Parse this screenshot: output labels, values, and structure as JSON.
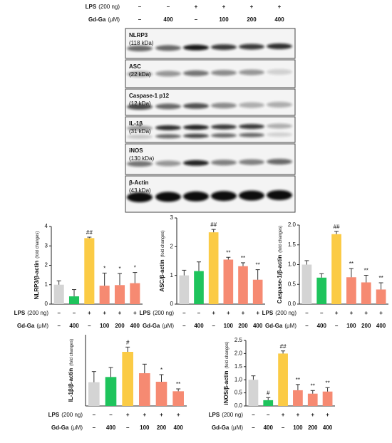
{
  "blot": {
    "conditions": [
      {
        "name": "LPS",
        "unit": "(200 ng)",
        "values": [
          "–",
          "–",
          "+",
          "+",
          "+",
          "+"
        ]
      },
      {
        "name": "Gd-Ga",
        "unit": "(μM)",
        "values": [
          "–",
          "400",
          "–",
          "100",
          "200",
          "400"
        ]
      }
    ],
    "panels": [
      {
        "name": "NLRP3",
        "size": "(118 kDa)"
      },
      {
        "name": "ASC",
        "size": "(22 kDa)"
      },
      {
        "name": "Caspase-1 p12",
        "size": "(12 kDa)"
      },
      {
        "name": "IL-1β",
        "size": "(31 kDa)"
      },
      {
        "name": "iNOS",
        "size": "(130 kDa)"
      },
      {
        "name": "β-Actin",
        "size": "(43 kDa)"
      }
    ]
  },
  "chart_data": [
    {
      "type": "bar",
      "ylabel": "NLRP3/β-actin",
      "ylabel_unit": "(fold changes)",
      "categories": [
        null,
        null,
        null,
        null,
        null,
        null
      ],
      "conditions": [
        {
          "name": "LPS",
          "unit": "(200 ng)",
          "values": [
            "–",
            "–",
            "+",
            "+",
            "+",
            "+"
          ]
        },
        {
          "name": "Gd-Ga",
          "unit": "(μM)",
          "values": [
            "–",
            "400",
            "–",
            "100",
            "200",
            "400"
          ]
        }
      ],
      "values": [
        1.0,
        0.4,
        3.4,
        0.95,
        0.98,
        1.08
      ],
      "errors": [
        0.2,
        0.35,
        0.05,
        0.65,
        0.6,
        0.55
      ],
      "annotations": [
        null,
        null,
        "##",
        "*",
        "*",
        "*"
      ],
      "colors": [
        "#d4d4d4",
        "#1ec45c",
        "#fbcb45",
        "#f68a72",
        "#f68a72",
        "#f68a72"
      ],
      "ylim": [
        0,
        4
      ],
      "yticks": [
        0,
        1,
        2,
        3,
        4
      ]
    },
    {
      "type": "bar",
      "ylabel": "ASC/β-actin",
      "ylabel_unit": "(fold changes)",
      "categories": [
        null,
        null,
        null,
        null,
        null,
        null
      ],
      "conditions": [
        {
          "name": "LPS",
          "unit": "(200 ng)",
          "values": [
            "–",
            "–",
            "+",
            "+",
            "+",
            "+"
          ]
        },
        {
          "name": "Gd-Ga",
          "unit": "(μM)",
          "values": [
            "–",
            "400",
            "–",
            "100",
            "200",
            "400"
          ]
        }
      ],
      "values": [
        1.0,
        1.15,
        2.5,
        1.55,
        1.32,
        0.85
      ],
      "errors": [
        0.18,
        0.32,
        0.1,
        0.08,
        0.12,
        0.35
      ],
      "annotations": [
        null,
        null,
        "##",
        "**",
        "**",
        "**"
      ],
      "colors": [
        "#d4d4d4",
        "#1ec45c",
        "#fbcb45",
        "#f68a72",
        "#f68a72",
        "#f68a72"
      ],
      "ylim": [
        0,
        3
      ],
      "yticks": [
        0,
        1,
        2,
        3
      ]
    },
    {
      "type": "bar",
      "ylabel": "Caspase-1/β-actin",
      "ylabel_unit": "(fold changes)",
      "categories": [
        null,
        null,
        null,
        null,
        null,
        null
      ],
      "conditions": [
        {
          "name": "LPS",
          "unit": "(200 ng)",
          "values": [
            "–",
            "–",
            "+",
            "+",
            "+",
            "+"
          ]
        },
        {
          "name": "Gd-Ga",
          "unit": "(μM)",
          "values": [
            "–",
            "400",
            "–",
            "100",
            "200",
            "400"
          ]
        }
      ],
      "values": [
        1.0,
        0.67,
        1.77,
        0.68,
        0.55,
        0.37
      ],
      "errors": [
        0.1,
        0.1,
        0.07,
        0.22,
        0.18,
        0.17
      ],
      "annotations": [
        null,
        null,
        "##",
        "**",
        "**",
        "**"
      ],
      "colors": [
        "#d4d4d4",
        "#1ec45c",
        "#fbcb45",
        "#f68a72",
        "#f68a72",
        "#f68a72"
      ],
      "ylim": [
        0,
        2
      ],
      "yticks": [
        {
          "value": 0,
          "label": "0.0"
        },
        {
          "value": 0.5,
          "label": "0.5"
        },
        {
          "value": 1,
          "label": "1.0"
        },
        {
          "value": 1.5,
          "label": "1.5"
        },
        {
          "value": 2,
          "label": "2.0"
        }
      ]
    },
    {
      "type": "bar",
      "ylabel": "IL-1β/β-actin",
      "ylabel_unit": "(fold changes)",
      "categories": [
        null,
        null,
        null,
        null,
        null,
        null
      ],
      "conditions": [
        {
          "name": "LPS",
          "unit": "(200 ng)",
          "values": [
            "–",
            "–",
            "+",
            "+",
            "+",
            "+"
          ]
        },
        {
          "name": "Gd-Ga",
          "unit": "(μM)",
          "values": [
            "–",
            "400",
            "–",
            "100",
            "200",
            "400"
          ]
        }
      ],
      "values": [
        1.0,
        1.22,
        2.28,
        1.38,
        1.02,
        0.62
      ],
      "errors": [
        0.45,
        0.4,
        0.2,
        0.38,
        0.3,
        0.1
      ],
      "annotations": [
        null,
        null,
        "#",
        null,
        "*",
        "**"
      ],
      "colors": [
        "#d4d4d4",
        "#1ec45c",
        "#fbcb45",
        "#f68a72",
        "#f68a72",
        "#f68a72"
      ],
      "ylim": [
        0,
        3
      ]
    },
    {
      "type": "bar",
      "ylabel": "iNOS/β-actin",
      "ylabel_unit": "(fold changes)",
      "categories": [
        null,
        null,
        null,
        null,
        null,
        null
      ],
      "conditions": [
        {
          "name": "LPS",
          "unit": "(200 ng)",
          "values": [
            "–",
            "–",
            "+",
            "+",
            "+",
            "+"
          ]
        },
        {
          "name": "Gd-Ga",
          "unit": "(μM)",
          "values": [
            "–",
            "400",
            "–",
            "100",
            "200",
            "400"
          ]
        }
      ],
      "values": [
        1.0,
        0.22,
        2.0,
        0.6,
        0.47,
        0.55
      ],
      "errors": [
        0.15,
        0.1,
        0.1,
        0.22,
        0.12,
        0.15
      ],
      "annotations": [
        null,
        "#",
        "##",
        "**",
        "**",
        "**"
      ],
      "colors": [
        "#d4d4d4",
        "#1ec45c",
        "#fbcb45",
        "#f68a72",
        "#f68a72",
        "#f68a72"
      ],
      "ylim": [
        0,
        2.5
      ],
      "yticks": [
        {
          "value": 0,
          "label": "0.0"
        },
        {
          "value": 0.5,
          "label": "0.5"
        },
        {
          "value": 1,
          "label": "1.0"
        },
        {
          "value": 1.5,
          "label": "1.5"
        },
        {
          "value": 2,
          "label": "2.0"
        },
        {
          "value": 2.5,
          "label": "2.5"
        }
      ]
    }
  ]
}
